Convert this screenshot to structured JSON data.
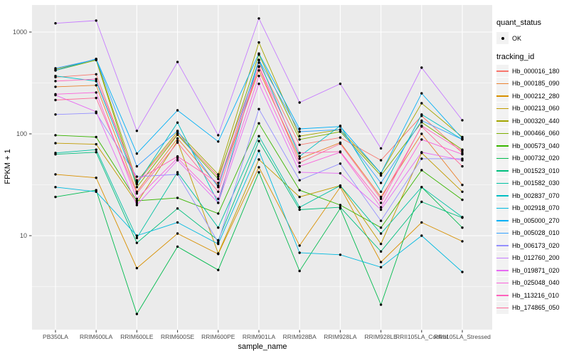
{
  "legend": {
    "quant_status": {
      "title": "quant_status",
      "items": [
        {
          "label": "OK",
          "shape": "point"
        }
      ]
    },
    "tracking_id": {
      "title": "tracking_id"
    }
  },
  "chart_data": {
    "type": "line",
    "title": "",
    "xlabel": "sample_name",
    "ylabel": "FPKM + 1",
    "y_scale": "log10",
    "ylim": [
      1,
      1800
    ],
    "yticks": [
      10,
      100,
      1000
    ],
    "grid": true,
    "legend_position": "right",
    "panel_bg": "#EBEBEB",
    "grid_color": "#FFFFFF",
    "point_color": "#000000",
    "tick_color": "#333333",
    "tick_label_color": "#4D4D4D",
    "categories": [
      "PB350LA",
      "RRIM600LA",
      "RRIM600LE",
      "RRIM600SE",
      "RRIM600PE",
      "RRIM901LA",
      "RRIM928BA",
      "RRIM928LA",
      "RRIM928LE",
      "RRII105LA_Control",
      "RRII105LA_Stressed"
    ],
    "series": [
      {
        "name": "Hb_000016_180",
        "color": "#F8766D",
        "values": [
          360,
          385,
          33,
          100,
          38,
          500,
          78,
          92,
          55,
          150,
          65
        ]
      },
      {
        "name": "Hb_000185_090",
        "color": "#EA8331",
        "values": [
          290,
          300,
          27,
          90,
          31,
          420,
          57,
          82,
          24,
          100,
          31.5
        ]
      },
      {
        "name": "Hb_000212_280",
        "color": "#D89000",
        "values": [
          40,
          37,
          4.8,
          10.5,
          6.6,
          47,
          8,
          30,
          5.5,
          13.5,
          8.8
        ]
      },
      {
        "name": "Hb_000213_060",
        "color": "#C09B00",
        "values": [
          81,
          79,
          21,
          85,
          6.7,
          56,
          24,
          31,
          8.3,
          65,
          27
        ]
      },
      {
        "name": "Hb_000320_440",
        "color": "#A3A500",
        "values": [
          430,
          540,
          34,
          105,
          40,
          790,
          95,
          110,
          41,
          200,
          93
        ]
      },
      {
        "name": "Hb_000466_060",
        "color": "#7CAE00",
        "values": [
          420,
          530,
          30,
          98,
          36,
          600,
          88,
          105,
          39,
          130,
          70
        ]
      },
      {
        "name": "Hb_000573_040",
        "color": "#39B600",
        "values": [
          97,
          93,
          22,
          23.5,
          16.5,
          127,
          28,
          20,
          12,
          44,
          22.5
        ]
      },
      {
        "name": "Hb_000732_020",
        "color": "#00BB4E",
        "values": [
          24,
          28,
          1.7,
          7.8,
          4.6,
          42,
          4.5,
          18.5,
          2.1,
          30,
          12
        ]
      },
      {
        "name": "Hb_001523_010",
        "color": "#00BF7D",
        "values": [
          63,
          66,
          8.5,
          18.5,
          9,
          85,
          18,
          19,
          7,
          21.5,
          15
        ]
      },
      {
        "name": "Hb_001582_030",
        "color": "#00C1A3",
        "values": [
          65,
          70,
          9.5,
          42,
          12,
          95,
          19,
          31,
          10.5,
          30,
          15.2
        ]
      },
      {
        "name": "Hb_002837_070",
        "color": "#00BFC4",
        "values": [
          370,
          330,
          32,
          129,
          21,
          530,
          60,
          120,
          27,
          155,
          88
        ]
      },
      {
        "name": "Hb_002918_070",
        "color": "#00BAE0",
        "values": [
          30,
          27,
          10,
          13.5,
          8.3,
          68,
          6.8,
          6.5,
          4.9,
          10,
          4.4
        ]
      },
      {
        "name": "Hb_005000_270",
        "color": "#00B0F6",
        "values": [
          420,
          545,
          64,
          170,
          84,
          615,
          112,
          118,
          41,
          250,
          90
        ]
      },
      {
        "name": "Hb_005028_010",
        "color": "#35A2FF",
        "values": [
          440,
          540,
          48,
          107,
          30,
          533,
          105,
          110,
          33,
          135,
          88
        ]
      },
      {
        "name": "Hb_006173_020",
        "color": "#9590FF",
        "values": [
          155,
          160,
          38,
          40,
          8.6,
          175,
          35,
          51,
          14,
          57,
          57
        ]
      },
      {
        "name": "Hb_012760_200",
        "color": "#C77CFF",
        "values": [
          1220,
          1295,
          107,
          508,
          97,
          1360,
          203,
          310,
          72,
          447,
          136
        ]
      },
      {
        "name": "Hb_019871_020",
        "color": "#E76BF3",
        "values": [
          240,
          165,
          20,
          55,
          21,
          310,
          42,
          41,
          18,
          66,
          55
        ]
      },
      {
        "name": "Hb_025048_040",
        "color": "#FA62DB",
        "values": [
          245,
          255,
          23,
          58,
          23,
          370,
          48,
          66,
          19,
          88,
          63
        ]
      },
      {
        "name": "Hb_113216_010",
        "color": "#FF62BC",
        "values": [
          330,
          345,
          35,
          60,
          33,
          460,
          65,
          67,
          21,
          120,
          68
        ]
      },
      {
        "name": "Hb_174865_050",
        "color": "#FF6A98",
        "values": [
          215,
          225,
          26,
          82,
          27,
          455,
          52,
          80,
          23,
          118,
          48
        ]
      }
    ]
  }
}
